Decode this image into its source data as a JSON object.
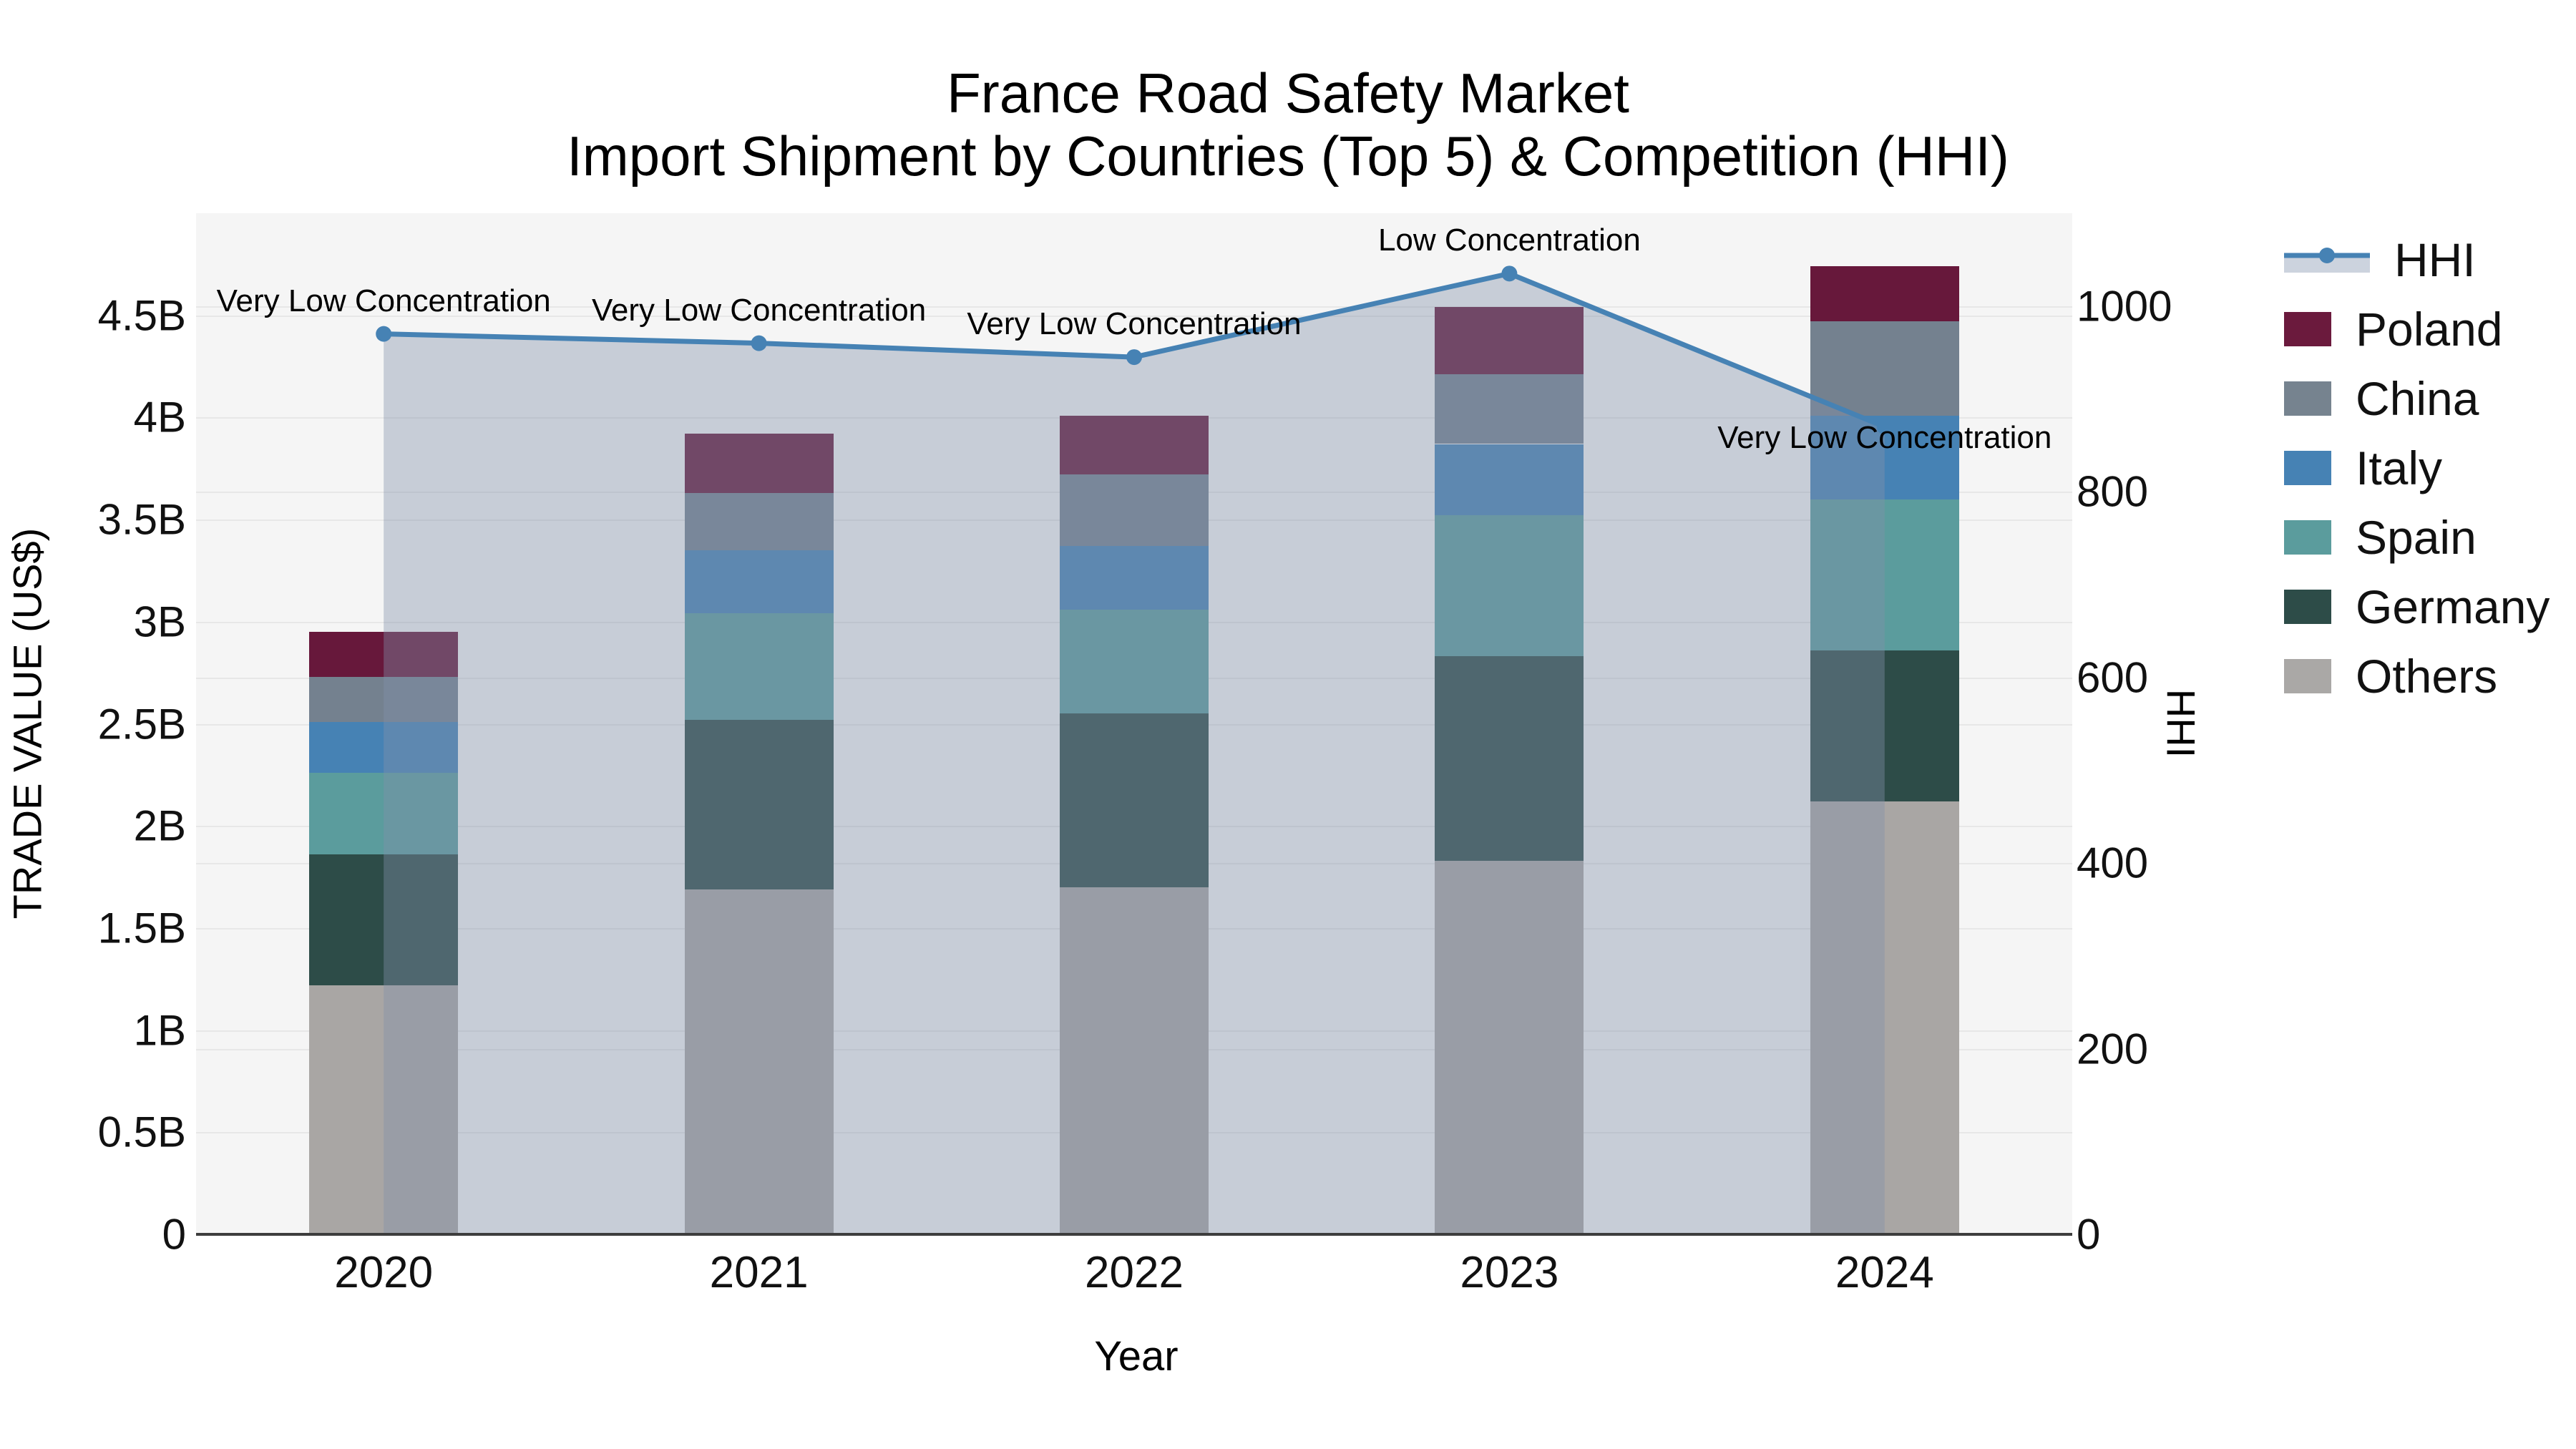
{
  "title": {
    "line1": "France Road Safety Market",
    "line2": "Import Shipment by Countries (Top 5) & Competition (HHI)"
  },
  "legend": [
    {
      "label": "HHI",
      "type": "line"
    },
    {
      "label": "Poland",
      "type": "swatch",
      "color": "#6b1a3d"
    },
    {
      "label": "China",
      "type": "swatch",
      "color": "#76838f"
    },
    {
      "label": "Italy",
      "type": "swatch",
      "color": "#4682b4"
    },
    {
      "label": "Spain",
      "type": "swatch",
      "color": "#5b9c9d"
    },
    {
      "label": "Germany",
      "type": "swatch",
      "color": "#2d4c48"
    },
    {
      "label": "Others",
      "type": "swatch",
      "color": "#aaa8a6"
    }
  ],
  "colors": {
    "plot_background": "#f5f5f5",
    "gridline": "#e7e7e7",
    "axis_line": "#3d3d3d",
    "hhi_line": "#4682b4",
    "hhi_area_fill": "#8291aa",
    "hhi_area_opacity": 0.4,
    "legend_area_band": "#ccd3de"
  },
  "chart_data": {
    "type": "combo",
    "bar_type": "stacked",
    "title": "France Road Safety Market Import Shipment by Countries (Top 5) & Competition (HHI)",
    "xlabel": "Year",
    "ylabel": "TRADE VALUE (US$)",
    "ylabel_right": "HHI",
    "categories": [
      "2020",
      "2021",
      "2022",
      "2023",
      "2024"
    ],
    "series": [
      {
        "name": "Others",
        "color": "#a9a6a4",
        "values": [
          1.22,
          1.69,
          1.7,
          1.83,
          2.12
        ]
      },
      {
        "name": "Germany",
        "color": "#2d4c48",
        "values": [
          0.64,
          0.83,
          0.85,
          1.0,
          0.74
        ]
      },
      {
        "name": "Spain",
        "color": "#5b9c9d",
        "values": [
          0.4,
          0.52,
          0.51,
          0.69,
          0.74
        ]
      },
      {
        "name": "Italy",
        "color": "#4682b4",
        "values": [
          0.25,
          0.31,
          0.31,
          0.35,
          0.41
        ]
      },
      {
        "name": "China",
        "color": "#74818f",
        "values": [
          0.22,
          0.28,
          0.35,
          0.34,
          0.46
        ]
      },
      {
        "name": "Poland",
        "color": "#67183b",
        "values": [
          0.22,
          0.29,
          0.29,
          0.33,
          0.27
        ]
      }
    ],
    "bar_totals": [
      2.95,
      3.92,
      4.01,
      4.54,
      4.74
    ],
    "line_series": {
      "name": "HHI",
      "axis": "right",
      "values": [
        970,
        960,
        945,
        1035,
        870
      ]
    },
    "annotations": [
      {
        "category": "2020",
        "text": "Very Low Concentration",
        "placement": "above"
      },
      {
        "category": "2021",
        "text": "Very Low Concentration",
        "placement": "above"
      },
      {
        "category": "2022",
        "text": "Very Low Concentration",
        "placement": "above"
      },
      {
        "category": "2023",
        "text": "Low Concentration",
        "placement": "above"
      },
      {
        "category": "2024",
        "text": "Very Low Concentration",
        "placement": "below"
      }
    ],
    "y_left": {
      "ticks": [
        "0",
        "0.5B",
        "1B",
        "1.5B",
        "2B",
        "2.5B",
        "3B",
        "3.5B",
        "4B",
        "4.5B"
      ],
      "tick_values": [
        0,
        0.5,
        1,
        1.5,
        2,
        2.5,
        3,
        3.5,
        4,
        4.5
      ],
      "unit": "B"
    },
    "y_right": {
      "ticks": [
        "0",
        "200",
        "400",
        "600",
        "800",
        "1000"
      ],
      "tick_values": [
        0,
        200,
        400,
        600,
        800,
        1000
      ]
    },
    "ylim_left": [
      0,
      5.0
    ],
    "ylim_right": [
      0,
      1100
    ],
    "grid": true,
    "legend_position": "right"
  }
}
